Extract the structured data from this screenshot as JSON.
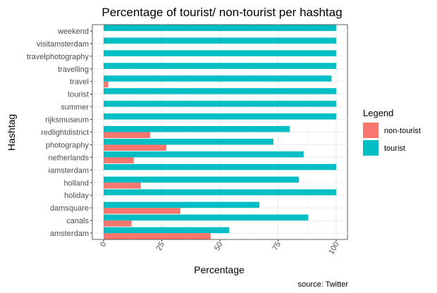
{
  "chart_data": {
    "type": "bar",
    "orientation": "horizontal",
    "title": "Percentage of tourist/ non-tourist per hashtag",
    "xlabel": "Percentage",
    "ylabel": "Hashtag",
    "caption": "source: Twitter",
    "xlim": [
      0,
      100
    ],
    "xticks": [
      "0",
      "25",
      "50",
      "75",
      "100"
    ],
    "grid": true,
    "legend": {
      "title": "Legend",
      "position": "right"
    },
    "categories": [
      "weekend",
      "visitamsterdam",
      "travelphotography",
      "travelling",
      "travel",
      "tourist",
      "summer",
      "rijksmuseum",
      "redlightdistrict",
      "photography",
      "netherlands",
      "iamsterdam",
      "holland",
      "holiday",
      "damsquare",
      "canals",
      "amsterdam"
    ],
    "series": [
      {
        "name": "non-tourist",
        "color": "#F8766D",
        "values": [
          0,
          0,
          0,
          0,
          2,
          0,
          0,
          0,
          20,
          27,
          13,
          0,
          16,
          0,
          33,
          12,
          46
        ]
      },
      {
        "name": "tourist",
        "color": "#00BFC4",
        "values": [
          100,
          100,
          100,
          100,
          98,
          100,
          100,
          100,
          80,
          73,
          86,
          100,
          84,
          100,
          67,
          88,
          54
        ]
      }
    ]
  }
}
